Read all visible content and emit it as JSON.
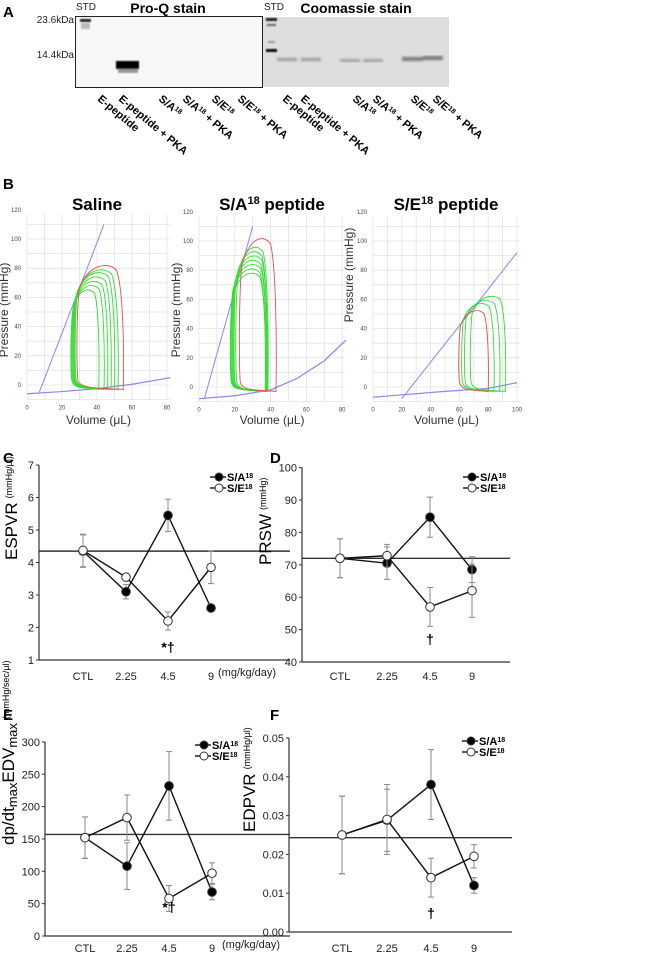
{
  "panel_labels": [
    "A",
    "B",
    "C",
    "D",
    "E",
    "F"
  ],
  "gel": {
    "proq_title": "Pro-Q stain",
    "coomassie_title": "Coomassie stain",
    "std_label": "STD",
    "markers": [
      "23.6kDa",
      "14.4kDa"
    ],
    "lanes": [
      {
        "base": "E-peptide",
        "sup": "",
        "suffix": ""
      },
      {
        "base": "E-peptide + PKA",
        "sup": "",
        "suffix": ""
      },
      {
        "base": "S/A",
        "sup": "18",
        "suffix": ""
      },
      {
        "base": "S/A",
        "sup": "18",
        "suffix": " + PKA"
      },
      {
        "base": "S/E",
        "sup": "18",
        "suffix": ""
      },
      {
        "base": "S/E",
        "sup": "18",
        "suffix": " + PKA"
      }
    ]
  },
  "chart_data": [
    {
      "id": "pv-saline",
      "type": "line",
      "title": {
        "base": "Saline",
        "sup": "",
        "suffix": ""
      },
      "xlabel": "Volume (μL)",
      "ylabel": "Pressure (mmHg)",
      "xlim": [
        0,
        80
      ],
      "ylim": [
        -10,
        120
      ],
      "xticks": [
        0,
        20,
        40,
        60,
        80
      ],
      "yticks": [
        0,
        20,
        40,
        60,
        80,
        100,
        120
      ],
      "espvr": [
        [
          7,
          -5
        ],
        [
          44,
          110
        ]
      ],
      "edpvr": [
        [
          0,
          -6
        ],
        [
          20,
          -4.5
        ],
        [
          40,
          -2.5
        ],
        [
          60,
          0.5
        ],
        [
          82,
          5
        ]
      ],
      "loops": [
        {
          "color": "#e05050",
          "edv": 55,
          "esv": 29,
          "peak": 83
        },
        {
          "color": "#33dd33",
          "edv": 52,
          "esv": 28,
          "peak": 80
        },
        {
          "color": "#33dd33",
          "edv": 50,
          "esv": 27.5,
          "peak": 78
        },
        {
          "color": "#33dd33",
          "edv": 48,
          "esv": 27,
          "peak": 75
        },
        {
          "color": "#33dd33",
          "edv": 46,
          "esv": 26.5,
          "peak": 72
        },
        {
          "color": "#33dd33",
          "edv": 44,
          "esv": 26,
          "peak": 69
        },
        {
          "color": "#33dd33",
          "edv": 41,
          "esv": 25.5,
          "peak": 66
        }
      ]
    },
    {
      "id": "pv-sa",
      "type": "line",
      "title": {
        "base": "S/A",
        "sup": "18",
        "suffix": " peptide"
      },
      "xlabel": "Volume (μL)",
      "ylabel": "Pressure (mmHg)",
      "xlim": [
        0,
        80
      ],
      "ylim": [
        -10,
        120
      ],
      "xticks": [
        0,
        20,
        40,
        60,
        80
      ],
      "yticks": [
        0,
        20,
        40,
        60,
        80,
        100,
        120
      ],
      "espvr": [
        [
          3,
          -8
        ],
        [
          30,
          110
        ]
      ],
      "edpvr": [
        [
          0,
          -8
        ],
        [
          20,
          -6
        ],
        [
          40,
          -2
        ],
        [
          55,
          6
        ],
        [
          70,
          18
        ],
        [
          82,
          32
        ]
      ],
      "loops": [
        {
          "color": "#e05050",
          "edv": 43,
          "esv": 23,
          "peak": 103
        },
        {
          "color": "#33dd33",
          "edv": 38.5,
          "esv": 21,
          "peak": 97
        },
        {
          "color": "#33dd33",
          "edv": 38,
          "esv": 20,
          "peak": 94
        },
        {
          "color": "#33dd33",
          "edv": 38,
          "esv": 19.5,
          "peak": 91
        },
        {
          "color": "#33dd33",
          "edv": 37.5,
          "esv": 19,
          "peak": 88
        },
        {
          "color": "#33dd33",
          "edv": 37.5,
          "esv": 18.5,
          "peak": 85
        },
        {
          "color": "#33dd33",
          "edv": 37,
          "esv": 18,
          "peak": 82
        },
        {
          "color": "#33dd33",
          "edv": 37,
          "esv": 18,
          "peak": 79
        }
      ]
    },
    {
      "id": "pv-se",
      "type": "line",
      "title": {
        "base": "S/E",
        "sup": "18",
        "suffix": " peptide"
      },
      "xlabel": "Volume (μL)",
      "ylabel": "Pressure (mmHg)",
      "xlim": [
        0,
        100
      ],
      "ylim": [
        -10,
        120
      ],
      "xticks": [
        0,
        20,
        40,
        60,
        80,
        100
      ],
      "yticks": [
        0,
        20,
        40,
        60,
        80,
        100,
        120
      ],
      "espvr": [
        [
          20,
          -8
        ],
        [
          100,
          92
        ]
      ],
      "edpvr": [
        [
          0,
          -7
        ],
        [
          50,
          -3
        ],
        [
          80,
          -1
        ],
        [
          100,
          3
        ]
      ],
      "loops": [
        {
          "color": "#e05050",
          "edv": 80,
          "esv": 60,
          "peak": 53
        },
        {
          "color": "#33dd33",
          "edv": 84,
          "esv": 62,
          "peak": 58
        },
        {
          "color": "#33dd33",
          "edv": 88,
          "esv": 64,
          "peak": 60
        },
        {
          "color": "#33dd33",
          "edv": 92,
          "esv": 68,
          "peak": 63
        }
      ]
    },
    {
      "id": "espvr",
      "type": "line",
      "ylabel_parts": [
        {
          "text": "ESPVR",
          "style": ""
        }
      ],
      "yunit": "(mmHg/μl)",
      "ylim": [
        1,
        7
      ],
      "yticks": [
        1,
        2,
        3,
        4,
        5,
        6,
        7
      ],
      "categories": [
        "CTL",
        "2.25",
        "4.5",
        "9"
      ],
      "xunit": "(mg/kg/day)",
      "reference": 4.35,
      "series": [
        {
          "name": "S/A",
          "sup": "18",
          "fill": "#000000",
          "values": [
            4.35,
            3.1,
            5.45,
            2.6
          ],
          "errors": [
            0.5,
            0.22,
            0.5,
            0.05
          ]
        },
        {
          "name": "S/E",
          "sup": "18",
          "fill": "#ffffff",
          "values": [
            4.37,
            3.55,
            2.2,
            3.85
          ],
          "errors": [
            0.5,
            0.1,
            0.28,
            0.5
          ]
        }
      ],
      "annotations": [
        {
          "category": 2,
          "text": "*†"
        }
      ]
    },
    {
      "id": "prsw",
      "type": "line",
      "ylabel_parts": [
        {
          "text": "PRSW",
          "style": ""
        }
      ],
      "yunit": "(mmHg)",
      "ylim": [
        40,
        100
      ],
      "yticks": [
        40,
        50,
        60,
        70,
        80,
        90,
        100
      ],
      "categories": [
        "CTL",
        "2.25",
        "4.5",
        "9"
      ],
      "xunit": "",
      "reference": 72,
      "series": [
        {
          "name": "S/A",
          "sup": "18",
          "fill": "#000000",
          "values": [
            72,
            70.5,
            84.7,
            68.5
          ],
          "errors": [
            6,
            5,
            6.2,
            4
          ]
        },
        {
          "name": "S/E",
          "sup": "18",
          "fill": "#ffffff",
          "values": [
            72,
            72.8,
            57,
            62
          ],
          "errors": [
            6,
            3.5,
            6,
            8.2
          ]
        }
      ],
      "annotations": [
        {
          "category": 2,
          "text": "†"
        }
      ]
    },
    {
      "id": "dpdt",
      "type": "line",
      "ylabel_parts": [
        {
          "text": "dp/dt",
          "style": ""
        },
        {
          "text": "max",
          "style": "sub"
        },
        {
          "text": "EDV",
          "style": ""
        },
        {
          "text": "max",
          "style": "sub"
        }
      ],
      "yunit": "(mmHg/sec/μl)",
      "ylim": [
        0,
        300
      ],
      "yticks": [
        0,
        50,
        100,
        150,
        200,
        250,
        300
      ],
      "categories": [
        "CTL",
        "2.25",
        "4.5",
        "9"
      ],
      "xunit": "(mg/kg/day)",
      "reference": 157,
      "series": [
        {
          "name": "S/A",
          "sup": "18",
          "fill": "#000000",
          "values": [
            152,
            108,
            232,
            68
          ],
          "errors": [
            32,
            36,
            53,
            12
          ]
        },
        {
          "name": "S/E",
          "sup": "18",
          "fill": "#ffffff",
          "values": [
            152,
            183,
            58,
            97
          ],
          "errors": [
            32,
            35,
            20,
            16
          ]
        }
      ],
      "annotations": [
        {
          "category": 2,
          "text": "*†"
        }
      ]
    },
    {
      "id": "edpvr",
      "type": "line",
      "ylabel_parts": [
        {
          "text": "EDPVR",
          "style": ""
        }
      ],
      "yunit": "(mmHg/μl)",
      "ylim": [
        0,
        0.05
      ],
      "yticks": [
        "0.00",
        "0.01",
        "0.02",
        "0.03",
        "0.04",
        "0.05"
      ],
      "categories": [
        "CTL",
        "2.25",
        "4.5",
        "9"
      ],
      "xunit": "",
      "reference": 0.0243,
      "series": [
        {
          "name": "S/A",
          "sup": "18",
          "fill": "#000000",
          "values": [
            0.025,
            0.0288,
            0.038,
            0.012
          ],
          "errors": [
            0.01,
            0.008,
            0.009,
            0.002
          ]
        },
        {
          "name": "S/E",
          "sup": "18",
          "fill": "#ffffff",
          "values": [
            0.025,
            0.029,
            0.014,
            0.0195
          ],
          "errors": [
            0.01,
            0.009,
            0.005,
            0.003
          ]
        }
      ],
      "annotations": [
        {
          "category": 2,
          "text": "†"
        }
      ]
    }
  ]
}
